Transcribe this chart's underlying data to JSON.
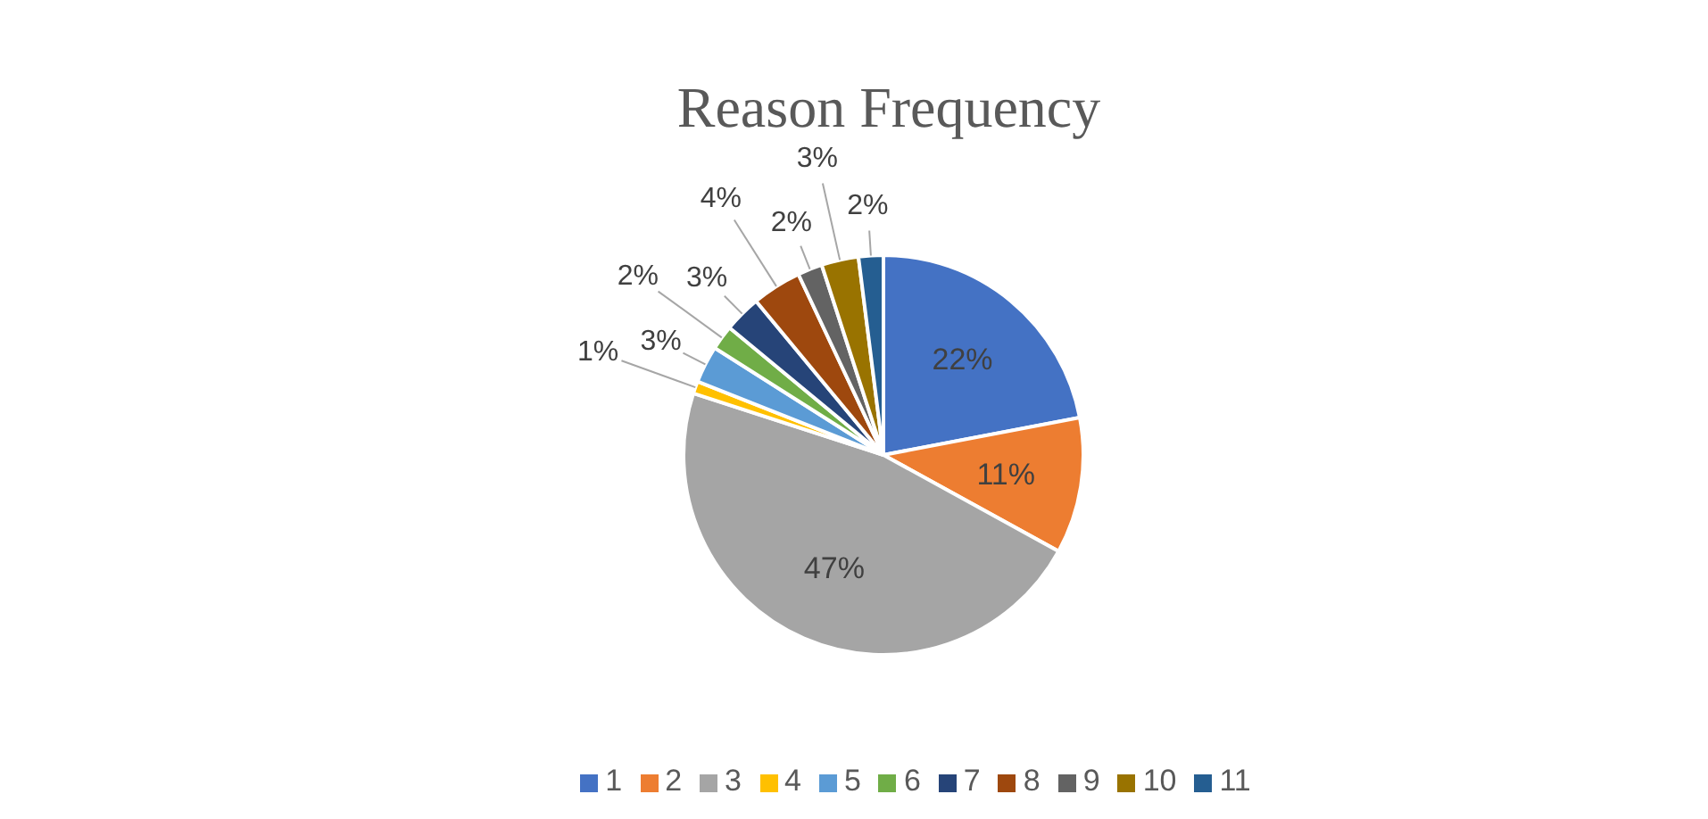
{
  "chart_data": {
    "type": "pie",
    "title": "Reason Frequency",
    "categories": [
      "1",
      "2",
      "3",
      "4",
      "5",
      "6",
      "7",
      "8",
      "9",
      "10",
      "11"
    ],
    "values": [
      22,
      11,
      47,
      1,
      3,
      2,
      3,
      4,
      2,
      3,
      2
    ],
    "value_labels": [
      "22%",
      "11%",
      "47%",
      "1%",
      "3%",
      "2%",
      "3%",
      "4%",
      "2%",
      "3%",
      "2%"
    ],
    "colors": [
      "#4472c4",
      "#ed7d31",
      "#a5a5a5",
      "#ffc000",
      "#5b9bd5",
      "#70ad47",
      "#264478",
      "#9e480e",
      "#636363",
      "#997300",
      "#255e91"
    ],
    "legend": "bottom"
  }
}
